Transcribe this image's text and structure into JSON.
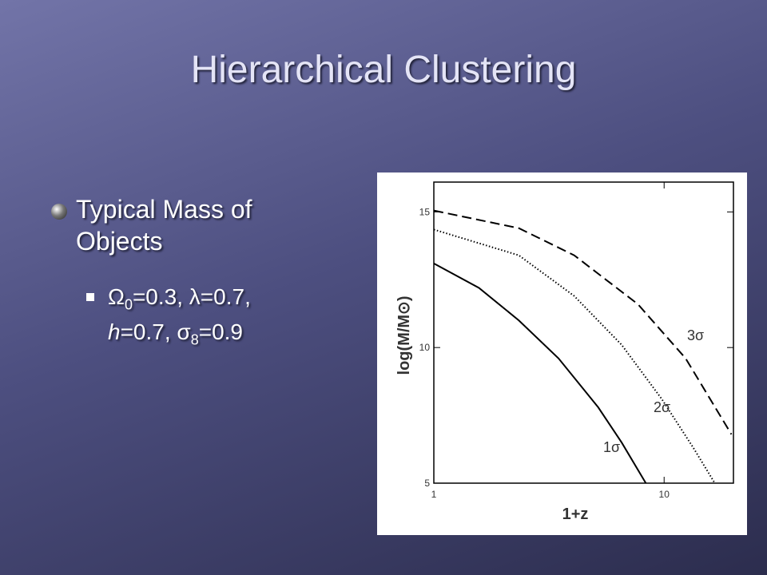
{
  "slide": {
    "title": "Hierarchical Clustering",
    "bullet": "Typical Mass of Objects",
    "sub_bullet": [
      "Ω",
      "0",
      "=0.3, λ=0.7,",
      "h",
      "=0.7, σ",
      "8",
      "=0.9"
    ]
  },
  "chart_data": {
    "type": "line",
    "xlabel": "1+z",
    "ylabel": "log(M/M⊙)",
    "xscale": "log",
    "xlim": [
      1,
      20
    ],
    "ylim": [
      5,
      16.1
    ],
    "xticks": [
      1,
      10
    ],
    "yticks": [
      5,
      10,
      15
    ],
    "series": [
      {
        "name": "1σ",
        "color": "#000000",
        "linestyle": "solid",
        "x": [
          1,
          1.57,
          2.34,
          3.48,
          5.17,
          6.54,
          8.33
        ],
        "values": [
          13.1,
          12.2,
          11.0,
          9.6,
          7.8,
          6.5,
          5.0
        ]
      },
      {
        "name": "2σ",
        "color": "#000000",
        "linestyle": "dotted",
        "x": [
          1,
          2.34,
          4.07,
          6.54,
          9.77,
          13.4,
          16.6
        ],
        "values": [
          14.35,
          13.4,
          11.9,
          10.1,
          8.1,
          6.3,
          5.0
        ]
      },
      {
        "name": "3σ",
        "color": "#000000",
        "linestyle": "dashed",
        "x": [
          1,
          2.34,
          4.07,
          7.69,
          12.4,
          19.6
        ],
        "values": [
          15.05,
          14.4,
          13.4,
          11.6,
          9.6,
          6.8
        ]
      }
    ]
  }
}
